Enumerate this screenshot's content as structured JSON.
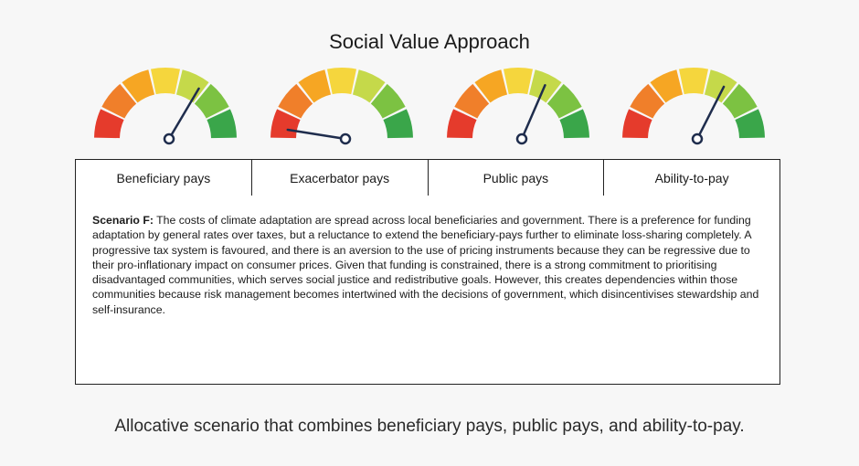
{
  "figure": {
    "title": "Social Value Approach",
    "gauges": [
      {
        "label": "Beneficiary pays",
        "level": 0.67
      },
      {
        "label": "Exacerbator pays",
        "level": 0.05
      },
      {
        "label": "Public pays",
        "level": 0.63
      },
      {
        "label": "Ability-to-pay",
        "level": 0.65
      }
    ],
    "gauge_colors": [
      "#e53b2c",
      "#f07f2a",
      "#f6a623",
      "#f5d63d",
      "#c5d94a",
      "#7cc242",
      "#3aa64a"
    ],
    "scenario": {
      "heading": "Scenario F:",
      "text": "The costs of climate adaptation are spread across local beneficiaries and government. There is a preference for funding adaptation by general rates over taxes, but a reluctance to extend the beneficiary-pays further to eliminate loss-sharing completely. A progressive tax system is favoured, and there is an aversion to the use of pricing instruments because they can be regressive due to their pro-inflationary impact on consumer prices. Given that funding is constrained, there is a strong commitment to prioritising disadvantaged communities, which serves social justice and redistributive goals. However, this creates dependencies within those communities because risk management becomes intertwined with the decisions of government, which disincentivises stewardship and self-insurance."
    }
  },
  "caption": "Allocative scenario that combines beneficiary pays, public pays, and ability-to-pay."
}
